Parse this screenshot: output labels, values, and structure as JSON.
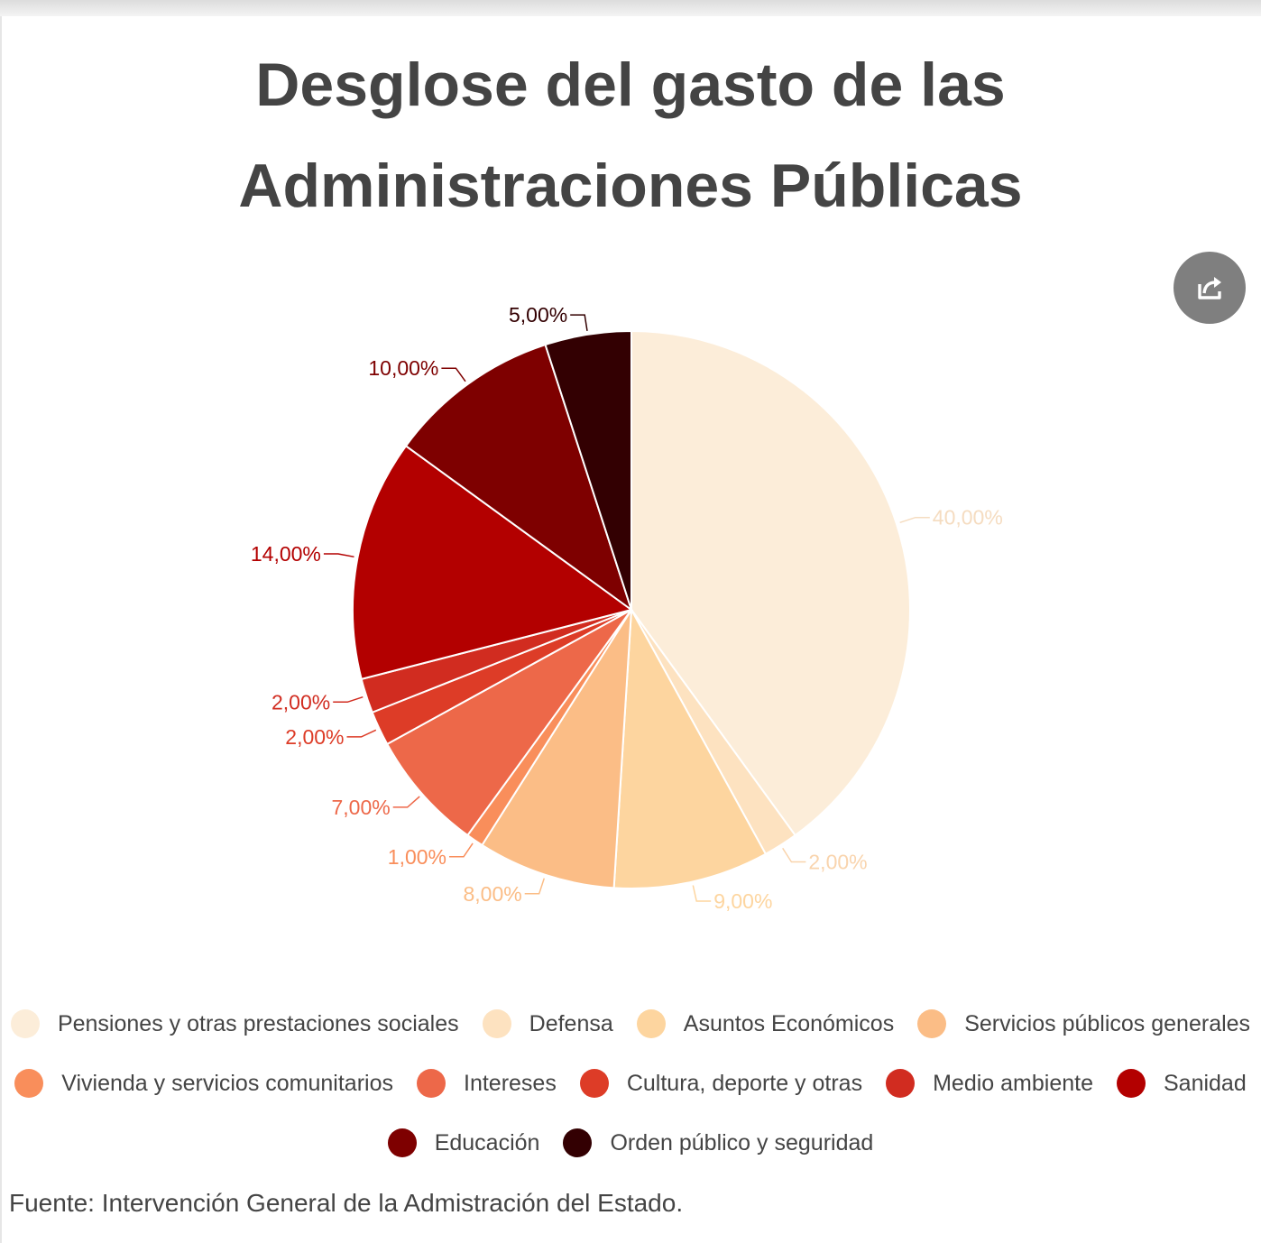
{
  "title_lines": [
    "Desglose del gasto de las",
    "Administraciones Públicas"
  ],
  "share_icon": "share-icon",
  "source": "Fuente: Intervención General de la Admistración del Estado.",
  "chart_data": {
    "type": "pie",
    "title": "Desglose del gasto de las Administraciones Públicas",
    "legend_position": "bottom",
    "slices": [
      {
        "label": "Pensiones y otras prestaciones sociales",
        "value": 40,
        "display": "40,00%",
        "color": "#fcedd9"
      },
      {
        "label": "Defensa",
        "value": 2,
        "display": "2,00%",
        "color": "#fde2c0"
      },
      {
        "label": "Asuntos Económicos",
        "value": 9,
        "display": "9,00%",
        "color": "#fdd59f"
      },
      {
        "label": "Servicios públicos generales",
        "value": 8,
        "display": "8,00%",
        "color": "#fbbd86"
      },
      {
        "label": "Vivienda y servicios comunitarios",
        "value": 1,
        "display": "1,00%",
        "color": "#f98e5b"
      },
      {
        "label": "Intereses",
        "value": 7,
        "display": "7,00%",
        "color": "#ed6849"
      },
      {
        "label": "Cultura, deporte y otras",
        "value": 2,
        "display": "2,00%",
        "color": "#dd3c27"
      },
      {
        "label": "Medio ambiente",
        "value": 2,
        "display": "2,00%",
        "color": "#d12c20"
      },
      {
        "label": "Sanidad",
        "value": 14,
        "display": "14,00%",
        "color": "#b30000"
      },
      {
        "label": "Educación",
        "value": 10,
        "display": "10,00%",
        "color": "#7e0000"
      },
      {
        "label": "Orden público y seguridad",
        "value": 5,
        "display": "5,00%",
        "color": "#330002"
      }
    ]
  }
}
